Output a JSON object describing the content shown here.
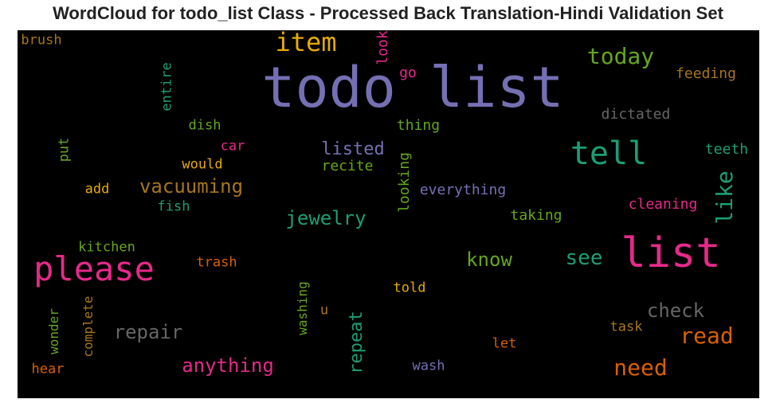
{
  "title": "WordCloud for todo_list Class - Processed Back Translation-Hindi Validation Set",
  "chart_data": {
    "type": "wordcloud",
    "background": "#000000",
    "words": [
      {
        "text": "todo list",
        "color": "#7570b3"
      },
      {
        "text": "list",
        "color": "#e7298a"
      },
      {
        "text": "please",
        "color": "#e7298a"
      },
      {
        "text": "tell",
        "color": "#1b9e77"
      },
      {
        "text": "item",
        "color": "#e6ab02"
      },
      {
        "text": "today",
        "color": "#66a61e"
      },
      {
        "text": "need",
        "color": "#d95f02"
      },
      {
        "text": "read",
        "color": "#d95f02"
      },
      {
        "text": "like",
        "color": "#1b9e77"
      },
      {
        "text": "see",
        "color": "#1b9e77"
      },
      {
        "text": "check",
        "color": "#666666"
      },
      {
        "text": "jewelry",
        "color": "#1b9e77"
      },
      {
        "text": "vacuuming",
        "color": "#a6761d"
      },
      {
        "text": "anything",
        "color": "#e7298a"
      },
      {
        "text": "repair",
        "color": "#666666"
      },
      {
        "text": "know",
        "color": "#66a61e"
      },
      {
        "text": "repeat",
        "color": "#1b9e77"
      },
      {
        "text": "listed",
        "color": "#7570b3"
      },
      {
        "text": "feeding",
        "color": "#a6761d"
      },
      {
        "text": "dictated",
        "color": "#666666"
      },
      {
        "text": "teeth",
        "color": "#1b9e77"
      },
      {
        "text": "cleaning",
        "color": "#e7298a"
      },
      {
        "text": "taking",
        "color": "#66a61e"
      },
      {
        "text": "everything",
        "color": "#7570b3"
      },
      {
        "text": "recite",
        "color": "#66a61e"
      },
      {
        "text": "thing",
        "color": "#66a61e"
      },
      {
        "text": "go",
        "color": "#e7298a"
      },
      {
        "text": "look",
        "color": "#e7298a"
      },
      {
        "text": "looking",
        "color": "#66a61e"
      },
      {
        "text": "brush",
        "color": "#a6761d"
      },
      {
        "text": "entire",
        "color": "#1b9e77"
      },
      {
        "text": "dish",
        "color": "#66a61e"
      },
      {
        "text": "car",
        "color": "#e7298a"
      },
      {
        "text": "would",
        "color": "#e6ab02"
      },
      {
        "text": "put",
        "color": "#66a61e"
      },
      {
        "text": "add",
        "color": "#e6ab02"
      },
      {
        "text": "fish",
        "color": "#1b9e77"
      },
      {
        "text": "kitchen",
        "color": "#66a61e"
      },
      {
        "text": "trash",
        "color": "#d95f02"
      },
      {
        "text": "complete",
        "color": "#a6761d"
      },
      {
        "text": "wonder",
        "color": "#66a61e"
      },
      {
        "text": "washing",
        "color": "#66a61e"
      },
      {
        "text": "u",
        "color": "#a6761d"
      },
      {
        "text": "told",
        "color": "#e6ab02"
      },
      {
        "text": "task",
        "color": "#a6761d"
      },
      {
        "text": "let",
        "color": "#d95f02"
      },
      {
        "text": "wash",
        "color": "#7570b3"
      },
      {
        "text": "hear",
        "color": "#d95f02"
      }
    ]
  }
}
